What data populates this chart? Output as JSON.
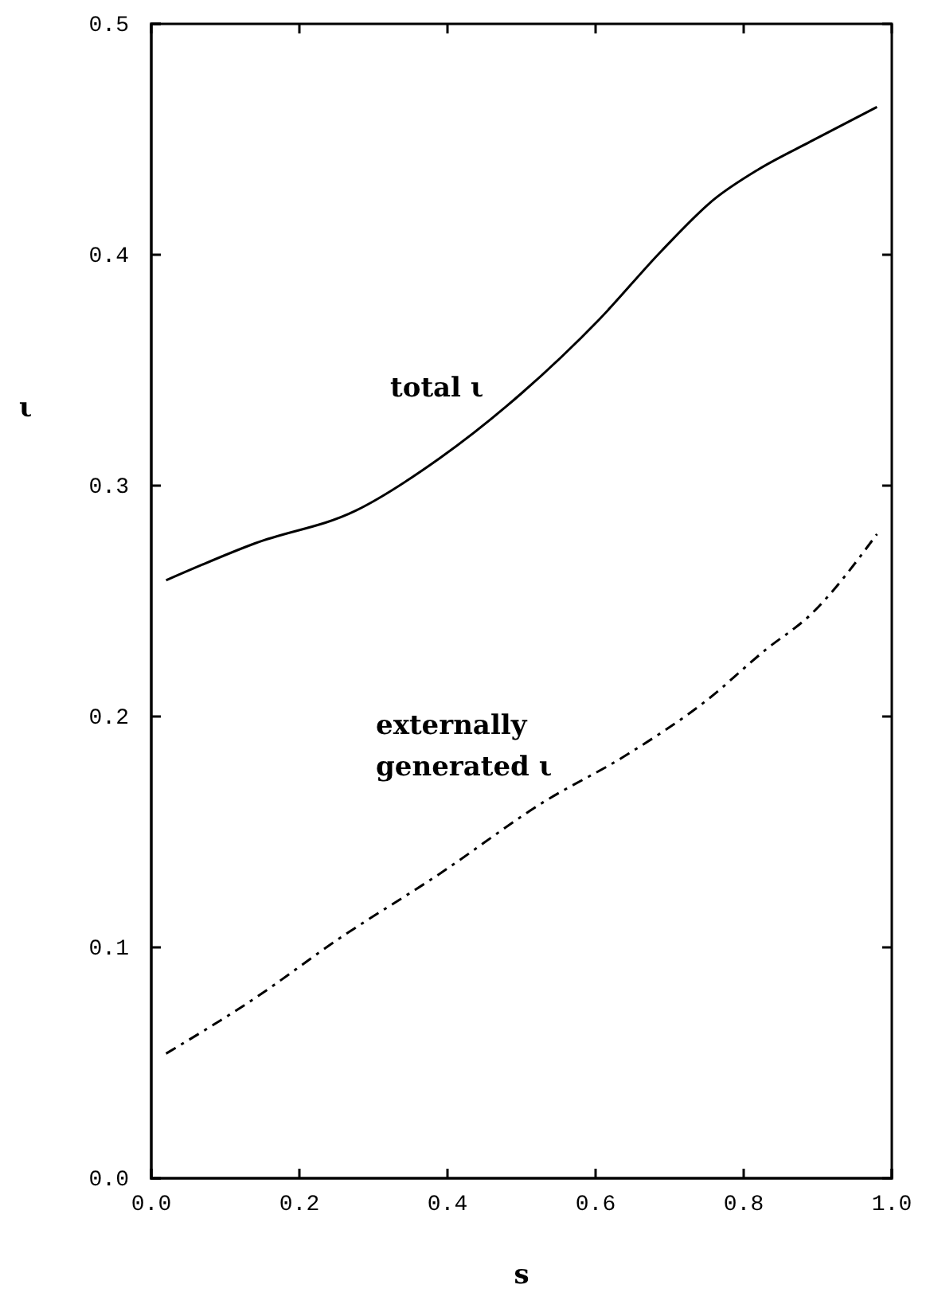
{
  "chart_data": {
    "type": "line",
    "xlabel": "s",
    "ylabel": "ι",
    "xlim": [
      0,
      1
    ],
    "ylim": [
      0,
      0.5
    ],
    "xticks": [
      {
        "value": 0,
        "label": "0.0"
      },
      {
        "value": 0.2,
        "label": "0.2"
      },
      {
        "value": 0.4,
        "label": "0.4"
      },
      {
        "value": 0.6,
        "label": "0.6"
      },
      {
        "value": 0.8,
        "label": "0.8"
      },
      {
        "value": 1,
        "label": "1.0"
      }
    ],
    "yticks": [
      {
        "value": 0,
        "label": "0.0"
      },
      {
        "value": 0.1,
        "label": "0.1"
      },
      {
        "value": 0.2,
        "label": "0.2"
      },
      {
        "value": 0.3,
        "label": "0.3"
      },
      {
        "value": 0.4,
        "label": "0.4"
      },
      {
        "value": 0.5,
        "label": "0.5"
      }
    ],
    "series": [
      {
        "color": "#000000",
        "line_style": "solid",
        "x": [
          0.02,
          0.14,
          0.275,
          0.39,
          0.5,
          0.605,
          0.69,
          0.76,
          0.82,
          0.89,
          0.98
        ],
        "values": [
          0.259,
          0.275,
          0.289,
          0.312,
          0.34,
          0.372,
          0.402,
          0.424,
          0.437,
          0.449,
          0.464
        ]
      },
      {
        "color": "#000000",
        "line_style": "dashed",
        "x": [
          0.02,
          0.14,
          0.25,
          0.39,
          0.53,
          0.64,
          0.75,
          0.83,
          0.89,
          0.98
        ],
        "values": [
          0.054,
          0.078,
          0.103,
          0.132,
          0.163,
          0.183,
          0.207,
          0.229,
          0.244,
          0.279
        ]
      }
    ],
    "annotations": [
      "total ι",
      "externally\ngenerated ι"
    ]
  }
}
